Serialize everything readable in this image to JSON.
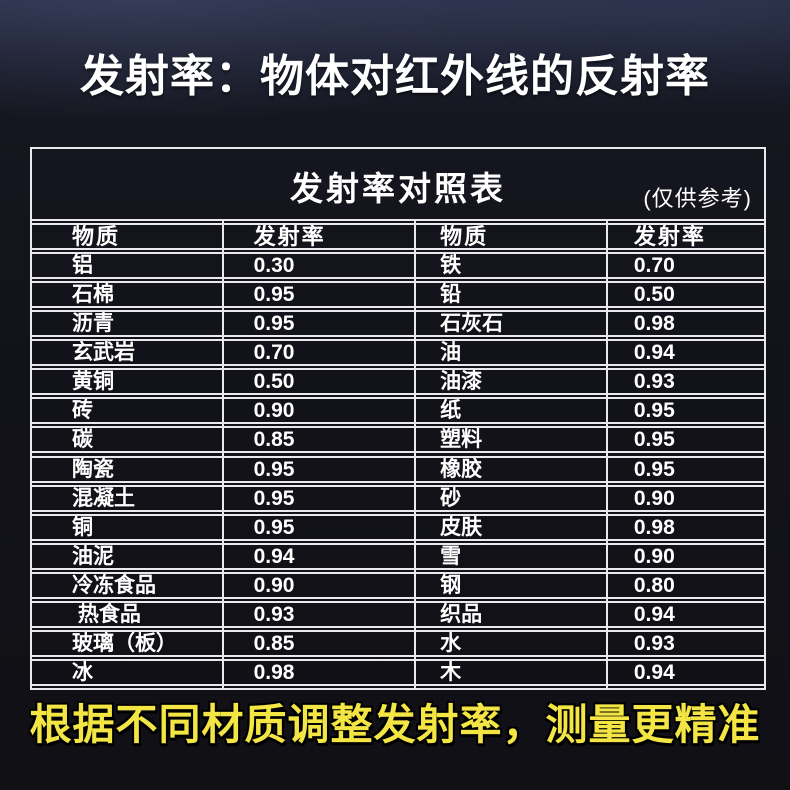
{
  "header": {
    "title": "发射率：物体对红外线的反射率"
  },
  "chart_data": {
    "type": "table",
    "title": "发射率对照表",
    "note": "(仅供参考)",
    "columns": [
      "物质",
      "发射率",
      "物质",
      "发射率"
    ],
    "rows": [
      [
        "铝",
        "0.30",
        "铁",
        "0.70"
      ],
      [
        "石棉",
        "0.95",
        "铅",
        "0.50"
      ],
      [
        "沥青",
        "0.95",
        "石灰石",
        "0.98"
      ],
      [
        "玄武岩",
        "0.70",
        "油",
        "0.94"
      ],
      [
        "黄铜",
        "0.50",
        "油漆",
        "0.93"
      ],
      [
        "砖",
        "0.90",
        "纸",
        "0.95"
      ],
      [
        "碳",
        "0.85",
        "塑料",
        "0.95"
      ],
      [
        "陶瓷",
        "0.95",
        "橡胶",
        "0.95"
      ],
      [
        "混凝土",
        "0.95",
        "砂",
        "0.90"
      ],
      [
        "铜",
        "0.95",
        "皮肤",
        "0.98"
      ],
      [
        "油泥",
        "0.94",
        "雪",
        "0.90"
      ],
      [
        "冷冻食品",
        "0.90",
        "钢",
        "0.80"
      ],
      [
        " 热食品",
        "0.93",
        "织品",
        "0.94"
      ],
      [
        "玻璃（板）",
        "0.85",
        "水",
        "0.93"
      ],
      [
        "冰",
        "0.98",
        "木",
        "0.94"
      ]
    ]
  },
  "footer": {
    "text": "根据不同材质调整发射率，测量更精准"
  },
  "colors": {
    "background_top": "#262b40",
    "background_bottom": "#101015",
    "table_border": "#e9e9ee",
    "text_white": "#ffffff",
    "accent_yellow": "#f2e544"
  }
}
